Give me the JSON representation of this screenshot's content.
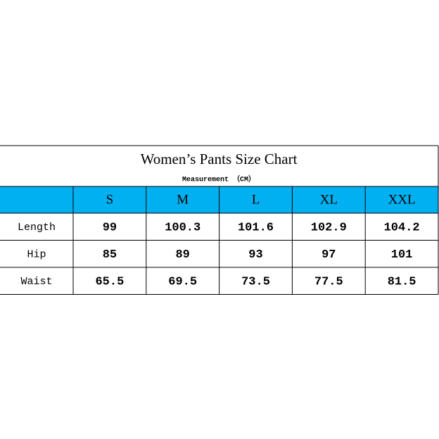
{
  "header": {
    "title": "Women’s Pants Size Chart",
    "subtitle": "Measurement （CM）"
  },
  "table": {
    "columns": [
      "S",
      "M",
      "L",
      "XL",
      "XXL"
    ],
    "rows": [
      {
        "label": "Length",
        "values": [
          99,
          100.3,
          101.6,
          102.9,
          104.2
        ]
      },
      {
        "label": "Hip",
        "values": [
          85,
          89,
          93,
          97,
          101
        ]
      },
      {
        "label": "Waist",
        "values": [
          65.5,
          69.5,
          73.5,
          77.5,
          81.5
        ]
      }
    ]
  }
}
